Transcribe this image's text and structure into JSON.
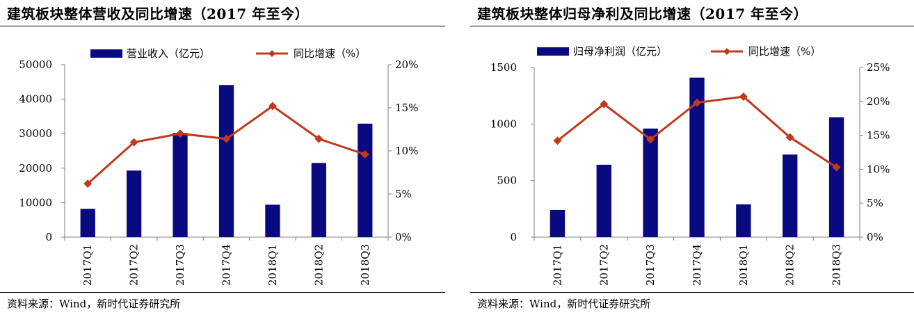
{
  "colors": {
    "bar": "#0a0a80",
    "line": "#c0391b",
    "axis": "#7f7f7f"
  },
  "panels": [
    {
      "title": "建筑板块整体营收及同比增速（2017 年至今）",
      "source": "资料来源：Wind，新时代证券研究所"
    },
    {
      "title": "建筑板块整体归母净利及同比增速（2017 年至今）",
      "source": "资料来源：Wind，新时代证券研究所"
    }
  ],
  "chart_data": [
    {
      "type": "bar",
      "categories": [
        "2017Q1",
        "2017Q2",
        "2017Q3",
        "2017Q4",
        "2018Q1",
        "2018Q2",
        "2018Q3"
      ],
      "series": [
        {
          "name": "营业收入（亿元）",
          "type": "bar",
          "axis": "left",
          "values": [
            8200,
            19300,
            30200,
            44100,
            9400,
            21500,
            32900
          ]
        },
        {
          "name": "同比增速（%）",
          "type": "line",
          "axis": "right",
          "values": [
            6.2,
            11.0,
            12.0,
            11.4,
            15.2,
            11.4,
            9.6
          ]
        }
      ],
      "y_left": {
        "range": [
          0,
          50000
        ],
        "ticks": [
          "0",
          "10000",
          "20000",
          "30000",
          "40000",
          "50000"
        ]
      },
      "y_right": {
        "range": [
          0,
          20
        ],
        "ticks": [
          "0%",
          "5%",
          "10%",
          "15%",
          "20%"
        ]
      },
      "legend": "top",
      "grid": false
    },
    {
      "type": "bar",
      "categories": [
        "2017Q1",
        "2017Q2",
        "2017Q3",
        "2017Q4",
        "2018Q1",
        "2018Q2",
        "2018Q3"
      ],
      "series": [
        {
          "name": "归母净利润（亿元）",
          "type": "bar",
          "axis": "left",
          "values": [
            240,
            640,
            960,
            1410,
            290,
            730,
            1060
          ]
        },
        {
          "name": "同比增速（%）",
          "type": "line",
          "axis": "right",
          "values": [
            14.2,
            19.6,
            14.4,
            19.8,
            20.7,
            14.7,
            10.3
          ]
        }
      ],
      "y_left": {
        "range": [
          0,
          1500
        ],
        "ticks": [
          "0",
          "500",
          "1000",
          "1500"
        ]
      },
      "y_right": {
        "range": [
          0,
          25
        ],
        "ticks": [
          "0%",
          "5%",
          "10%",
          "15%",
          "20%",
          "25%"
        ]
      },
      "legend": "top",
      "grid": false
    }
  ]
}
